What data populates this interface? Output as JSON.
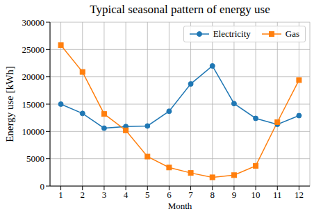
{
  "chart_data": {
    "type": "line",
    "title": "Typical seasonal pattern of energy use",
    "x_label": "Month",
    "y_label": "Energy use [kWh]",
    "x": [
      1,
      2,
      3,
      4,
      5,
      6,
      7,
      8,
      9,
      10,
      11,
      12
    ],
    "series": [
      {
        "name": "Electricity",
        "color": "#1f77b4",
        "marker": "circle",
        "values": [
          15000,
          13300,
          10600,
          10900,
          11000,
          13700,
          18700,
          22000,
          15100,
          12400,
          11300,
          12900
        ]
      },
      {
        "name": "Gas",
        "color": "#ff7f0e",
        "marker": "square",
        "values": [
          25800,
          20900,
          13200,
          10200,
          5400,
          3400,
          2400,
          1600,
          2000,
          3700,
          11700,
          19400
        ]
      }
    ],
    "xlim": [
      0.5,
      12.5
    ],
    "xticks": [
      1,
      2,
      3,
      4,
      5,
      6,
      7,
      8,
      9,
      10,
      11,
      12
    ],
    "ylim": [
      0,
      30000
    ],
    "yticks": [
      0,
      5000,
      10000,
      15000,
      20000,
      25000,
      30000
    ],
    "grid": true,
    "legend": "upper right"
  }
}
